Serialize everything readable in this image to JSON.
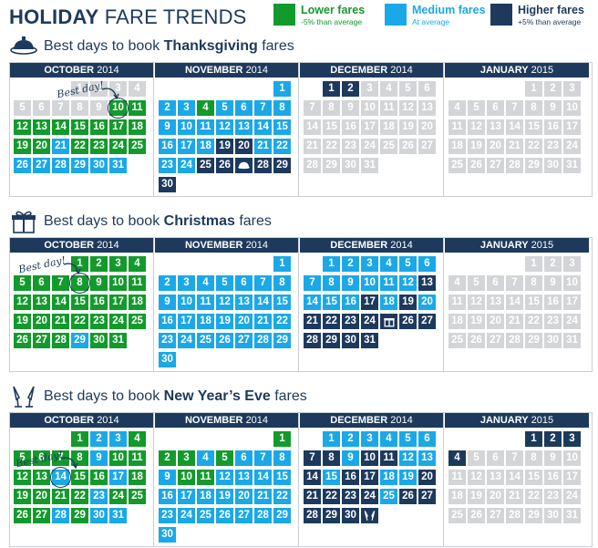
{
  "header": {
    "title_bold": "HOLIDAY",
    "title_light": "FARE TRENDS",
    "legend": [
      {
        "key": "low",
        "title": "Lower fares",
        "sub": "-5% than average",
        "color": "#139a2c"
      },
      {
        "key": "med",
        "title": "Medium fares",
        "sub": "At average",
        "color": "#1ba8e8"
      },
      {
        "key": "high",
        "title": "Higher fares",
        "sub": "+5% than average",
        "color": "#1d3a5c"
      }
    ]
  },
  "colors": {
    "low": "#139a2c",
    "med": "#1ba8e8",
    "high": "#1d3a5c",
    "gray": "#d3d5d8"
  },
  "month_names": {
    "oct": "OCTOBER",
    "nov": "NOVEMBER",
    "dec": "DECEMBER",
    "jan": "JANUARY"
  },
  "years": {
    "oct": "2014",
    "nov": "2014",
    "dec": "2014",
    "jan": "2015"
  },
  "best_day_label": "Best day!",
  "sections": [
    {
      "key": "thanksgiving",
      "icon": "turkey-icon",
      "title_prefix": "Best days to book ",
      "title_holiday": "Thanksgiving",
      "title_suffix": " fares",
      "best_day": {
        "month": "oct",
        "day": 10
      },
      "holiday_mark": {
        "month": "nov",
        "day": 27,
        "icon": "turkey-icon"
      },
      "months": {
        "oct": {
          "g": "1-9",
          "l": "7-20,22-25",
          "m": "21,26-31"
        },
        "nov": {
          "l": "4",
          "m": "1-3,5-18,21-24",
          "h": "19,20,25-30"
        },
        "dec": {
          "h": "1,2",
          "g": "3-31"
        },
        "jan": {
          "g": "1-31"
        }
      }
    },
    {
      "key": "christmas",
      "icon": "gift-icon",
      "title_prefix": "Best days to book ",
      "title_holiday": "Christmas",
      "title_suffix": " fares",
      "best_day": {
        "month": "oct",
        "day": 8
      },
      "holiday_mark": {
        "month": "dec",
        "day": 25,
        "icon": "gift-icon"
      },
      "months": {
        "oct": {
          "l": "1-28,30,31",
          "m": "29"
        },
        "nov": {
          "m": "1-30"
        },
        "dec": {
          "m": "1-12,14-16,18,20",
          "h": "13,17,19,21-31"
        },
        "jan": {
          "g": "1-31"
        }
      }
    },
    {
      "key": "newyear",
      "icon": "champagne-icon",
      "title_prefix": "Best days to book ",
      "title_holiday": "New Year’s Eve",
      "title_suffix": " fares",
      "best_day": {
        "month": "oct",
        "day": 14
      },
      "holiday_mark": {
        "month": "dec",
        "day": 31,
        "icon": "champagne-icon"
      },
      "months": {
        "oct": {
          "l": "1,4-8,10-13,15,16,18-22,24-27,29",
          "m": "2,3,9,14,17,23,28,30,31"
        },
        "nov": {
          "l": "1-3,5,10,11",
          "m": "4,6-9,12-30"
        },
        "dec": {
          "m": "1-6,9,12,13,15,18,19,25",
          "h": "7,8,10,11,14,16,17,20-24,26-31"
        },
        "jan": {
          "h": "1-4",
          "g": "5-31"
        }
      }
    }
  ]
}
